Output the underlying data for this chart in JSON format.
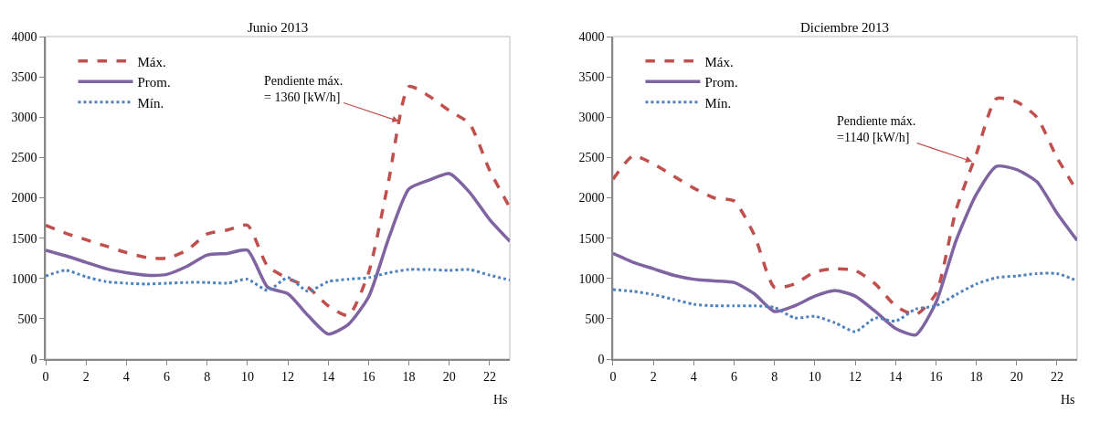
{
  "chart_data": [
    {
      "type": "line",
      "title": "Junio 2013",
      "xlabel": "Hs",
      "x": [
        0,
        1,
        2,
        3,
        4,
        5,
        6,
        7,
        8,
        9,
        10,
        11,
        12,
        13,
        14,
        15,
        16,
        17,
        18,
        19,
        20,
        21,
        22,
        23
      ],
      "xlim": [
        0,
        23
      ],
      "xticks": [
        0,
        2,
        4,
        6,
        8,
        10,
        12,
        14,
        16,
        18,
        20,
        22
      ],
      "ylim": [
        0,
        4000
      ],
      "yticks": [
        0,
        500,
        1000,
        1500,
        2000,
        2500,
        3000,
        3500,
        4000
      ],
      "grid": false,
      "legend": "top left",
      "series": [
        {
          "name": "Máx.",
          "color": "#c0504d",
          "line_style": "dashed",
          "values": [
            1660,
            1560,
            1480,
            1400,
            1320,
            1260,
            1250,
            1350,
            1550,
            1600,
            1660,
            1150,
            1000,
            890,
            660,
            540,
            1070,
            2220,
            3380,
            3260,
            3080,
            2920,
            2340,
            1880
          ]
        },
        {
          "name": "Prom.",
          "color": "#8064a2",
          "line_style": "solid",
          "values": [
            1350,
            1280,
            1200,
            1120,
            1070,
            1040,
            1050,
            1150,
            1290,
            1310,
            1350,
            890,
            810,
            540,
            310,
            430,
            770,
            1500,
            2110,
            2220,
            2300,
            2070,
            1730,
            1460
          ]
        },
        {
          "name": "Mín.",
          "color": "#4f81bd",
          "line_style": "dotted",
          "values": [
            1030,
            1100,
            1020,
            960,
            940,
            930,
            940,
            950,
            950,
            940,
            990,
            850,
            1010,
            840,
            960,
            990,
            1010,
            1070,
            1110,
            1110,
            1100,
            1110,
            1040,
            980
          ]
        }
      ],
      "annotations": [
        {
          "text": "Pendiente máx.\n= 1360 [kW/h]",
          "x": 17.5,
          "y": 2950
        }
      ]
    },
    {
      "type": "line",
      "title": "Diciembre 2013",
      "xlabel": "Hs",
      "x": [
        0,
        1,
        2,
        3,
        4,
        5,
        6,
        7,
        8,
        9,
        10,
        11,
        12,
        13,
        14,
        15,
        16,
        17,
        18,
        19,
        20,
        21,
        22,
        23
      ],
      "xlim": [
        0,
        23
      ],
      "xticks": [
        0,
        2,
        4,
        6,
        8,
        10,
        12,
        14,
        16,
        18,
        20,
        22
      ],
      "ylim": [
        0,
        4000
      ],
      "yticks": [
        0,
        500,
        1000,
        1500,
        2000,
        2500,
        3000,
        3500,
        4000
      ],
      "grid": false,
      "legend": "top left",
      "series": [
        {
          "name": "Máx.",
          "color": "#c0504d",
          "line_style": "dashed",
          "values": [
            2230,
            2520,
            2420,
            2270,
            2120,
            2000,
            1960,
            1540,
            890,
            930,
            1080,
            1120,
            1100,
            930,
            660,
            550,
            810,
            1850,
            2540,
            3230,
            3190,
            3000,
            2500,
            2080
          ]
        },
        {
          "name": "Prom.",
          "color": "#8064a2",
          "line_style": "solid",
          "values": [
            1310,
            1200,
            1120,
            1040,
            990,
            970,
            950,
            810,
            590,
            660,
            780,
            850,
            780,
            590,
            380,
            300,
            700,
            1470,
            2040,
            2390,
            2350,
            2200,
            1810,
            1470
          ]
        },
        {
          "name": "Mín.",
          "color": "#4f81bd",
          "line_style": "dotted",
          "values": [
            860,
            840,
            800,
            740,
            680,
            660,
            660,
            660,
            640,
            510,
            530,
            450,
            340,
            510,
            470,
            620,
            660,
            800,
            930,
            1010,
            1030,
            1060,
            1060,
            970
          ]
        }
      ],
      "annotations": [
        {
          "text": "Pendiente máx.\n=1140 [kW/h]",
          "x": 17.8,
          "y": 2450
        }
      ]
    }
  ]
}
